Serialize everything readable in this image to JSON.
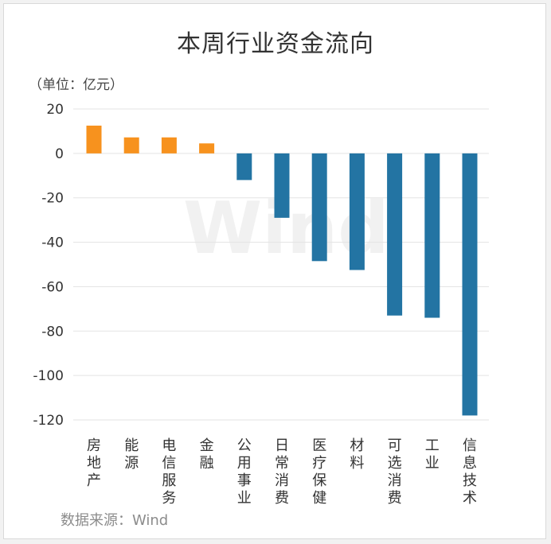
{
  "header": {
    "title": "本周行业资金流向",
    "unit": "（单位：亿元）"
  },
  "footer": {
    "source": "数据来源：Wind"
  },
  "watermark": "Wind",
  "colors": {
    "positive": "#f7921e",
    "negative": "#2374a3",
    "grid": "#e3e3e3"
  },
  "chart_data": {
    "type": "bar",
    "title": "本周行业资金流向",
    "ylabel": "（单位：亿元）",
    "xlabel": "",
    "categories": [
      "房地产",
      "能源",
      "电信服务",
      "金融",
      "公用事业",
      "日常消费",
      "医疗保健",
      "材料",
      "可选消费",
      "工业",
      "信息技术"
    ],
    "values": [
      12.5,
      7.2,
      7.2,
      4.5,
      -12,
      -29,
      -48.5,
      -52.5,
      -73,
      -74,
      -118
    ],
    "ylim": [
      -120,
      20
    ],
    "yticks": [
      20,
      0,
      -20,
      -40,
      -60,
      -80,
      -100,
      -120
    ],
    "grid": true,
    "legend": false
  }
}
